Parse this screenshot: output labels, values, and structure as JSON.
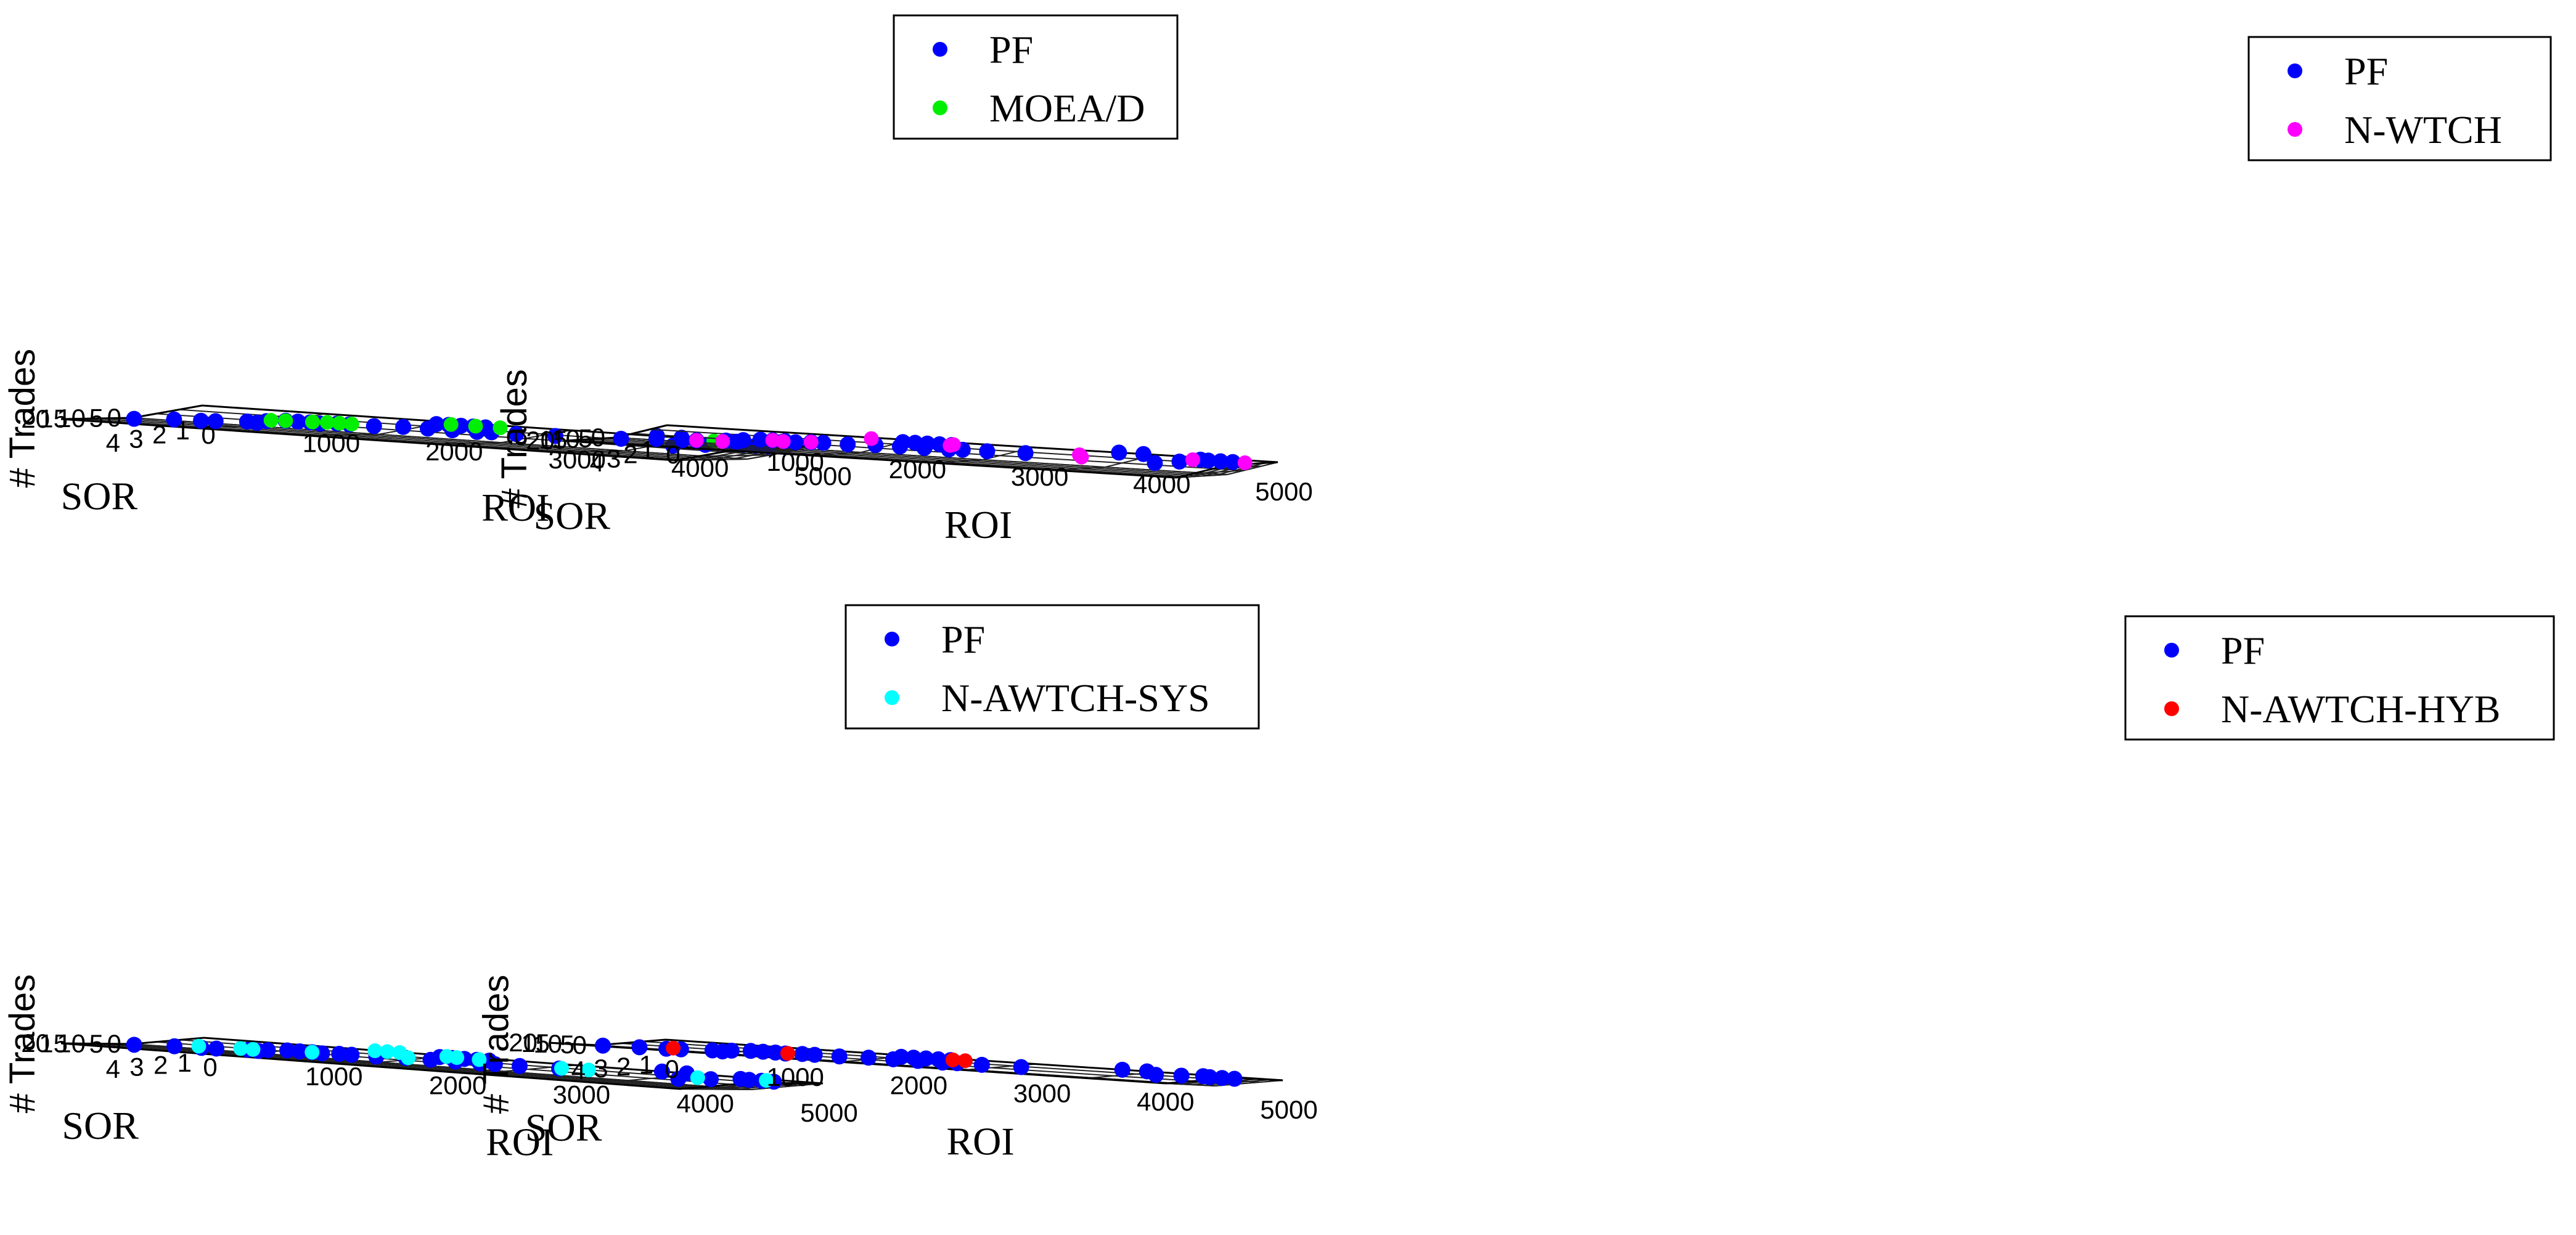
{
  "chart_data": [
    {
      "type": "scatter",
      "xlabel": "ROI",
      "ylabel": "SOR",
      "zlabel": "# Trades",
      "xlim": [
        0,
        5000
      ],
      "ylim": [
        1,
        4
      ],
      "zlim": [
        0,
        20
      ],
      "xticks": [
        "0",
        "1000",
        "2000",
        "3000",
        "4000",
        "5000"
      ],
      "yticks": [
        "1",
        "2",
        "3",
        "4"
      ],
      "zticks": [
        "0",
        "5",
        "10",
        "15",
        "20"
      ],
      "grid": true,
      "legend_position": "top-right",
      "series": [
        {
          "name": "PF",
          "color": "#0000ff",
          "points": [
            [
              4400,
              1.7,
              15
            ],
            [
              4450,
              1.5,
              9
            ],
            [
              4450,
              1.3,
              2
            ],
            [
              3700,
              1.0,
              0
            ],
            [
              3900,
              1.0,
              0
            ],
            [
              4500,
              1.5,
              0
            ],
            [
              4600,
              1.5,
              0
            ],
            [
              4700,
              1.5,
              0
            ],
            [
              2000,
              1.5,
              0
            ],
            [
              2100,
              1.5,
              0
            ],
            [
              2200,
              1.5,
              0
            ],
            [
              2300,
              1.5,
              0
            ],
            [
              2400,
              1.5,
              0
            ],
            [
              3100,
              2.2,
              0
            ],
            [
              2800,
              2.3,
              0
            ],
            [
              2600,
              2.3,
              0
            ],
            [
              2500,
              2.4,
              0
            ],
            [
              2300,
              2.4,
              0
            ],
            [
              2100,
              2.4,
              0
            ],
            [
              1900,
              2.4,
              0
            ],
            [
              1700,
              2.6,
              0
            ],
            [
              1500,
              2.6,
              0
            ],
            [
              1400,
              2.6,
              0
            ],
            [
              1200,
              2.7,
              0
            ],
            [
              1100,
              2.7,
              0
            ],
            [
              1000,
              2.7,
              0
            ],
            [
              900,
              3.0,
              0
            ],
            [
              1300,
              2.8,
              0
            ],
            [
              800,
              3.3,
              0
            ],
            [
              900,
              3.4,
              0
            ],
            [
              600,
              3.6,
              0
            ],
            [
              500,
              3.7,
              0
            ],
            [
              300,
              3.8,
              0
            ],
            [
              100,
              4.0,
              3
            ]
          ]
        },
        {
          "name": "MOEA/D",
          "color": "#00ee00",
          "points": [
            [
              4200,
              1.2,
              0
            ],
            [
              2100,
              1.4,
              0
            ],
            [
              2300,
              1.4,
              0
            ],
            [
              2500,
              1.4,
              0
            ],
            [
              1400,
              2.5,
              0
            ],
            [
              1300,
              2.5,
              0
            ],
            [
              1200,
              2.6,
              0
            ],
            [
              1000,
              2.7,
              0
            ],
            [
              900,
              2.8,
              0
            ],
            [
              1500,
              2.5,
              0
            ]
          ]
        }
      ]
    },
    {
      "type": "scatter",
      "xlabel": "ROI",
      "ylabel": "SOR",
      "zlabel": "# Trades",
      "xlim": [
        0,
        5000
      ],
      "ylim": [
        1,
        4
      ],
      "zlim": [
        0,
        20
      ],
      "xticks": [
        "0",
        "1000",
        "2000",
        "3000",
        "4000",
        "5000"
      ],
      "yticks": [
        "1",
        "2",
        "3",
        "4"
      ],
      "zticks": [
        "0",
        "5",
        "10",
        "15",
        "20"
      ],
      "grid": true,
      "legend_position": "top-right",
      "series": [
        {
          "name": "PF",
          "color": "#0000ff",
          "points": [
            [
              4400,
              1.7,
              15
            ],
            [
              4450,
              1.5,
              9
            ],
            [
              4450,
              1.3,
              2
            ],
            [
              3700,
              1.0,
              0
            ],
            [
              3900,
              1.0,
              0
            ],
            [
              4500,
              1.5,
              0
            ],
            [
              4600,
              1.5,
              0
            ],
            [
              4700,
              1.5,
              0
            ],
            [
              2000,
              1.5,
              0
            ],
            [
              2100,
              1.5,
              0
            ],
            [
              2200,
              1.5,
              0
            ],
            [
              2300,
              1.5,
              0
            ],
            [
              2400,
              1.5,
              0
            ],
            [
              3100,
              2.2,
              0
            ],
            [
              2800,
              2.3,
              0
            ],
            [
              2600,
              2.3,
              0
            ],
            [
              2500,
              2.4,
              0
            ],
            [
              2300,
              2.4,
              0
            ],
            [
              2100,
              2.4,
              0
            ],
            [
              1900,
              2.4,
              0
            ],
            [
              1700,
              2.6,
              0
            ],
            [
              1500,
              2.6,
              0
            ],
            [
              1400,
              2.6,
              0
            ],
            [
              1200,
              2.7,
              0
            ],
            [
              1100,
              2.7,
              0
            ],
            [
              1000,
              2.7,
              0
            ],
            [
              900,
              3.0,
              0
            ],
            [
              1300,
              2.8,
              0
            ],
            [
              800,
              3.3,
              0
            ],
            [
              900,
              3.4,
              0
            ],
            [
              600,
              3.6,
              0
            ],
            [
              500,
              3.7,
              0
            ],
            [
              300,
              3.8,
              0
            ],
            [
              100,
              4.0,
              3
            ]
          ]
        },
        {
          "name": "N-WTCH",
          "color": "#ff00ff",
          "points": [
            [
              4400,
              1.4,
              2
            ],
            [
              4800,
              1.5,
              0
            ],
            [
              3600,
              2.2,
              2
            ],
            [
              3500,
              1.9,
              0
            ],
            [
              2400,
              1.6,
              0
            ],
            [
              2400,
              1.4,
              0
            ],
            [
              1700,
              1.2,
              0
            ],
            [
              1200,
              2.8,
              0
            ],
            [
              1400,
              2.6,
              0
            ],
            [
              800,
              3.5,
              0
            ],
            [
              600,
              3.6,
              0
            ],
            [
              1100,
              2.7,
              0
            ]
          ]
        }
      ]
    },
    {
      "type": "scatter",
      "xlabel": "ROI",
      "ylabel": "SOR",
      "zlabel": "# Trades",
      "xlim": [
        0,
        5000
      ],
      "ylim": [
        1,
        4
      ],
      "zlim": [
        0,
        20
      ],
      "xticks": [
        "0",
        "1000",
        "2000",
        "3000",
        "4000",
        "5000"
      ],
      "yticks": [
        "1",
        "2",
        "3",
        "4"
      ],
      "zticks": [
        "0",
        "5",
        "10",
        "15",
        "20"
      ],
      "grid": true,
      "legend_position": "top-right",
      "series": [
        {
          "name": "PF",
          "color": "#0000ff",
          "points": [
            [
              4400,
              1.7,
              15
            ],
            [
              4450,
              1.5,
              9
            ],
            [
              4450,
              1.3,
              2
            ],
            [
              3700,
              1.0,
              0
            ],
            [
              3900,
              1.0,
              0
            ],
            [
              4500,
              1.5,
              0
            ],
            [
              4600,
              1.5,
              0
            ],
            [
              4700,
              1.5,
              0
            ],
            [
              2000,
              1.5,
              0
            ],
            [
              2100,
              1.5,
              0
            ],
            [
              2200,
              1.5,
              0
            ],
            [
              2300,
              1.5,
              0
            ],
            [
              2400,
              1.5,
              0
            ],
            [
              3100,
              2.2,
              0
            ],
            [
              2800,
              2.3,
              0
            ],
            [
              2600,
              2.3,
              0
            ],
            [
              2500,
              2.4,
              0
            ],
            [
              2300,
              2.4,
              0
            ],
            [
              2100,
              2.4,
              0
            ],
            [
              1900,
              2.4,
              0
            ],
            [
              1700,
              2.6,
              0
            ],
            [
              1500,
              2.6,
              0
            ],
            [
              1400,
              2.6,
              0
            ],
            [
              1200,
              2.7,
              0
            ],
            [
              1100,
              2.7,
              0
            ],
            [
              1000,
              2.7,
              0
            ],
            [
              900,
              3.0,
              0
            ],
            [
              1300,
              2.8,
              0
            ],
            [
              800,
              3.3,
              0
            ],
            [
              900,
              3.4,
              0
            ],
            [
              600,
              3.6,
              0
            ],
            [
              500,
              3.7,
              0
            ],
            [
              300,
              3.8,
              0
            ],
            [
              100,
              4.0,
              3
            ]
          ]
        },
        {
          "name": "N-AWTCH-SYS",
          "color": "#00ffff",
          "points": [
            [
              4200,
              1.8,
              2
            ],
            [
              4600,
              1.3,
              0
            ],
            [
              3300,
              2.0,
              0
            ],
            [
              3100,
              2.1,
              0
            ],
            [
              2300,
              1.4,
              0
            ],
            [
              1400,
              1.1,
              0
            ],
            [
              1500,
              1.1,
              0
            ],
            [
              1600,
              1.1,
              0
            ],
            [
              2000,
              1.2,
              0
            ],
            [
              2100,
              1.3,
              0
            ],
            [
              1900,
              2.3,
              0
            ],
            [
              1200,
              2.7,
              0
            ],
            [
              800,
              3.1,
              0
            ],
            [
              700,
              3.1,
              0
            ],
            [
              400,
              3.3,
              0
            ]
          ]
        }
      ]
    },
    {
      "type": "scatter",
      "xlabel": "ROI",
      "ylabel": "SOR",
      "zlabel": "# Trades",
      "xlim": [
        0,
        5000
      ],
      "ylim": [
        1,
        4
      ],
      "zlim": [
        0,
        20
      ],
      "xticks": [
        "0",
        "1000",
        "2000",
        "3000",
        "4000",
        "5000"
      ],
      "yticks": [
        "1",
        "2",
        "3",
        "4"
      ],
      "zticks": [
        "0",
        "5",
        "10",
        "15",
        "20"
      ],
      "grid": true,
      "legend_position": "top-right",
      "series": [
        {
          "name": "PF",
          "color": "#0000ff",
          "points": [
            [
              4400,
              1.7,
              15
            ],
            [
              4450,
              1.5,
              9
            ],
            [
              4450,
              1.3,
              2
            ],
            [
              3700,
              1.0,
              0
            ],
            [
              3900,
              1.0,
              0
            ],
            [
              4500,
              1.5,
              0
            ],
            [
              4600,
              1.5,
              0
            ],
            [
              4700,
              1.5,
              0
            ],
            [
              2000,
              1.5,
              0
            ],
            [
              2100,
              1.5,
              0
            ],
            [
              2200,
              1.5,
              0
            ],
            [
              2300,
              1.5,
              0
            ],
            [
              2400,
              1.5,
              0
            ],
            [
              3100,
              2.2,
              0
            ],
            [
              2800,
              2.3,
              0
            ],
            [
              2600,
              2.3,
              0
            ],
            [
              2500,
              2.4,
              0
            ],
            [
              2300,
              2.4,
              0
            ],
            [
              2100,
              2.4,
              0
            ],
            [
              1900,
              2.4,
              0
            ],
            [
              1700,
              2.6,
              0
            ],
            [
              1500,
              2.6,
              0
            ],
            [
              1400,
              2.6,
              0
            ],
            [
              1200,
              2.7,
              0
            ],
            [
              1100,
              2.7,
              0
            ],
            [
              1000,
              2.7,
              0
            ],
            [
              900,
              3.0,
              0
            ],
            [
              1300,
              2.8,
              0
            ],
            [
              800,
              3.3,
              0
            ],
            [
              900,
              3.4,
              0
            ],
            [
              600,
              3.6,
              0
            ],
            [
              500,
              3.7,
              0
            ],
            [
              300,
              3.8,
              0
            ],
            [
              100,
              4.0,
              3
            ]
          ]
        },
        {
          "name": "N-AWTCH-HYB",
          "color": "#ff0000",
          "points": [
            [
              2400,
              1.4,
              0
            ],
            [
              2500,
              1.4,
              0
            ],
            [
              1300,
              2.7,
              0
            ],
            [
              500,
              3.4,
              0
            ]
          ]
        }
      ]
    }
  ]
}
